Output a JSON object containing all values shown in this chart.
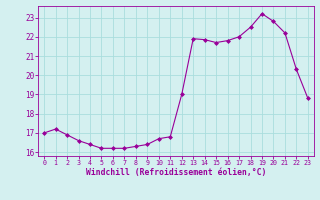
{
  "hours": [
    0,
    1,
    2,
    3,
    4,
    5,
    6,
    7,
    8,
    9,
    10,
    11,
    12,
    13,
    14,
    15,
    16,
    17,
    18,
    19,
    20,
    21,
    22,
    23
  ],
  "values": [
    17.0,
    17.2,
    16.9,
    16.6,
    16.4,
    16.2,
    16.2,
    16.2,
    16.3,
    16.4,
    16.7,
    16.8,
    19.0,
    21.9,
    21.85,
    21.7,
    21.8,
    22.0,
    22.5,
    23.2,
    22.8,
    22.2,
    20.3,
    18.8
  ],
  "line_color": "#990099",
  "marker": "D",
  "marker_size": 2.0,
  "bg_color": "#d4f0f0",
  "grid_color": "#aadddd",
  "xlabel": "Windchill (Refroidissement éolien,°C)",
  "xlabel_color": "#990099",
  "tick_color": "#990099",
  "ylim": [
    15.8,
    23.6
  ],
  "xlim": [
    -0.5,
    23.5
  ],
  "yticks": [
    16,
    17,
    18,
    19,
    20,
    21,
    22,
    23
  ],
  "xticks": [
    0,
    1,
    2,
    3,
    4,
    5,
    6,
    7,
    8,
    9,
    10,
    11,
    12,
    13,
    14,
    15,
    16,
    17,
    18,
    19,
    20,
    21,
    22,
    23
  ]
}
